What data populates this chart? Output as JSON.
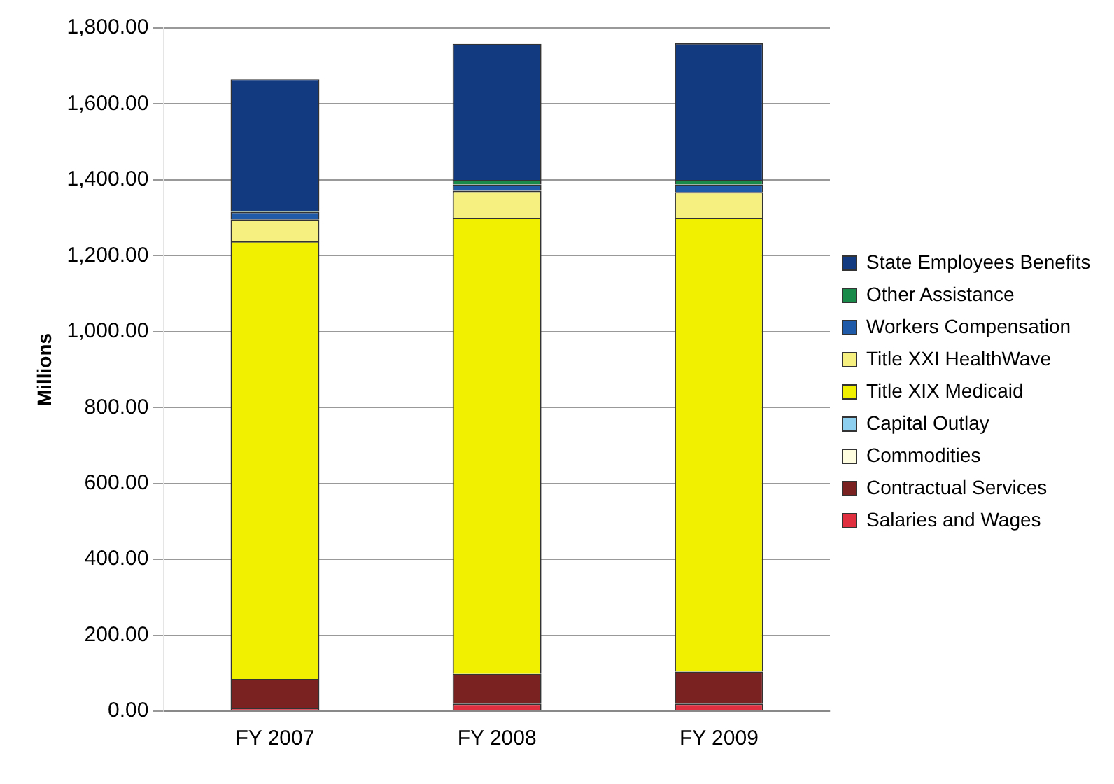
{
  "chart_data": {
    "type": "bar",
    "stacked": true,
    "ylabel": "Millions",
    "categories": [
      "FY 2007",
      "FY 2008",
      "FY 2009"
    ],
    "series": [
      {
        "name": "Salaries and Wages",
        "color": "#e03040",
        "values": [
          8,
          20,
          20
        ]
      },
      {
        "name": "Contractual Services",
        "color": "#7a2222",
        "values": [
          77,
          78,
          84
        ]
      },
      {
        "name": "Commodities",
        "color": "#fffde0",
        "values": [
          null,
          null,
          null
        ]
      },
      {
        "name": "Capital Outlay",
        "color": "#8ccfee",
        "values": [
          null,
          null,
          null
        ]
      },
      {
        "name": "Title XIX Medicaid",
        "color": "#f0f000",
        "values": [
          1153,
          1202,
          1196
        ]
      },
      {
        "name": "Title XXI HealthWave",
        "color": "#f5f080",
        "values": [
          58,
          71,
          68
        ]
      },
      {
        "name": "Workers Compensation",
        "color": "#1e5aa8",
        "values": [
          20,
          17,
          20
        ]
      },
      {
        "name": "Other Assistance",
        "color": "#1a8a4a",
        "values": [
          2,
          12,
          12
        ]
      },
      {
        "name": "State Employees Benefits",
        "color": "#123a80",
        "values": [
          347,
          358,
          360
        ]
      }
    ],
    "ylim": [
      0,
      1800
    ],
    "yticks": [
      {
        "value": 0,
        "label": "0.00"
      },
      {
        "value": 200,
        "label": "200.00"
      },
      {
        "value": 400,
        "label": "400.00"
      },
      {
        "value": 600,
        "label": "600.00"
      },
      {
        "value": 800,
        "label": "800.00"
      },
      {
        "value": 1000,
        "label": "1,000.00"
      },
      {
        "value": 1200,
        "label": "1,200.00"
      },
      {
        "value": 1400,
        "label": "1,400.00"
      },
      {
        "value": 1600,
        "label": "1,600.00"
      },
      {
        "value": 1800,
        "label": "1,800.00"
      }
    ],
    "grid": "y",
    "legend": "right"
  }
}
